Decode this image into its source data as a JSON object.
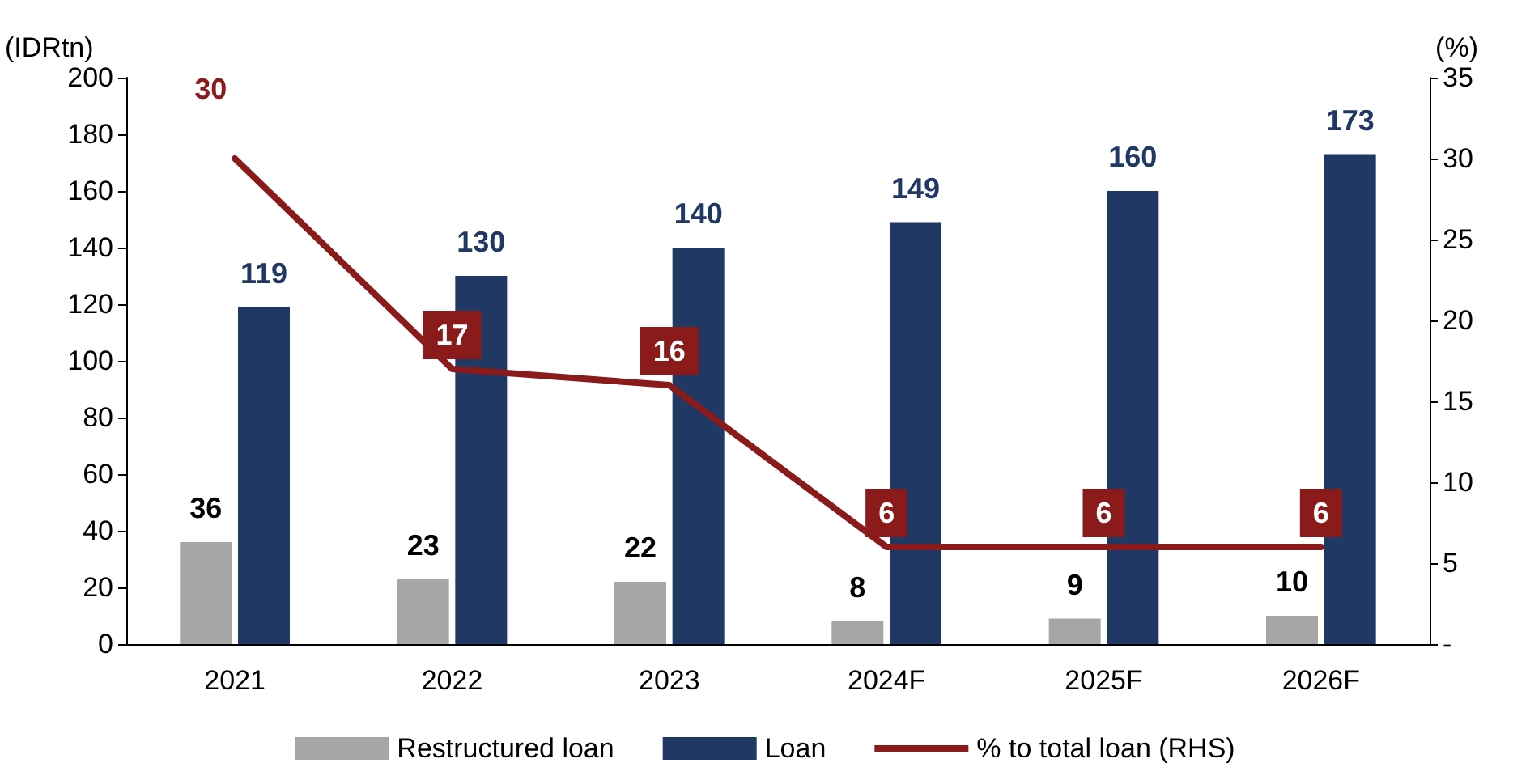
{
  "chart_data": {
    "type": "bar",
    "ylabel": "(IDRtn)",
    "y2label": "(%)",
    "categories": [
      "2021",
      "2022",
      "2023",
      "2024F",
      "2025F",
      "2026F"
    ],
    "series": [
      {
        "name": "Restructured loan",
        "color": "#a6a6a6",
        "values": [
          36,
          23,
          22,
          8,
          9,
          10
        ]
      },
      {
        "name": "Loan",
        "color": "#1f3864",
        "values": [
          119,
          130,
          140,
          149,
          160,
          173
        ]
      },
      {
        "name": "% to total loan (RHS)",
        "type": "line",
        "axis": "y2",
        "color": "#8b1a1a",
        "values": [
          30,
          17,
          16,
          6,
          6,
          6
        ]
      }
    ],
    "ylim": [
      0,
      200
    ],
    "yticks": [
      0,
      20,
      40,
      60,
      80,
      100,
      120,
      140,
      160,
      180,
      200
    ],
    "y2lim": [
      0,
      35
    ],
    "y2ticks": [
      {
        "value": 0,
        "label": "-"
      },
      5,
      10,
      15,
      20,
      25,
      30,
      35
    ],
    "data_labels": true,
    "grid": false,
    "legend": "bottom",
    "marker": "none",
    "line_style": "solid"
  }
}
